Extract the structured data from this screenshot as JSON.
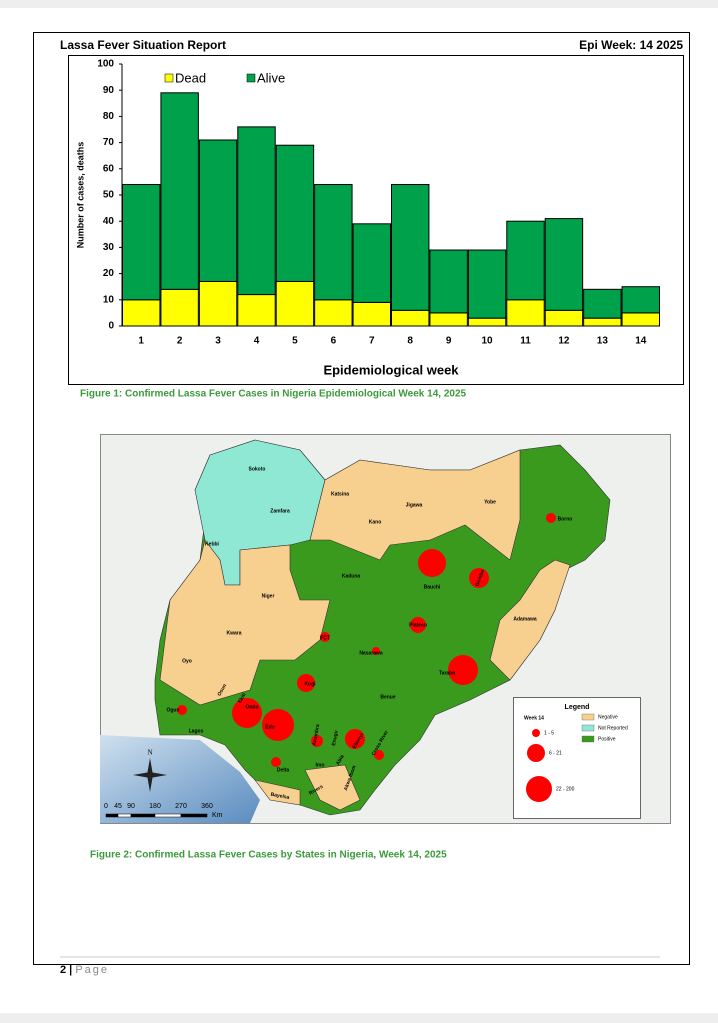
{
  "header": {
    "title": "Lassa Fever Situation Report",
    "week": "Epi Week: 14 2025"
  },
  "chart_data": {
    "type": "bar",
    "stacked": true,
    "legend": "top-left",
    "categories": [
      "1",
      "2",
      "3",
      "4",
      "5",
      "6",
      "7",
      "8",
      "9",
      "10",
      "11",
      "12",
      "13",
      "14"
    ],
    "series": [
      {
        "name": "Dead",
        "color": "#ffff00",
        "values": [
          10,
          14,
          17,
          12,
          17,
          10,
          9,
          6,
          5,
          3,
          10,
          6,
          3,
          5
        ]
      },
      {
        "name": "Alive",
        "color": "#00a14b",
        "values": [
          44,
          75,
          54,
          64,
          52,
          44,
          30,
          48,
          24,
          26,
          30,
          35,
          11,
          10
        ]
      }
    ],
    "ylim": [
      0,
      100
    ],
    "yticks": [
      0,
      10,
      20,
      30,
      40,
      50,
      60,
      70,
      80,
      90,
      100
    ],
    "ylabel": "Number of cases, deaths",
    "xlabel": "Epidemiological week"
  },
  "figure1_caption": "Figure 1: Confirmed Lassa Fever Cases in Nigeria Epidemiological Week 14, 2025",
  "map": {
    "states": [
      "Sokoto",
      "Katsina",
      "Jigawa",
      "Yobe",
      "Borno",
      "Zamfara",
      "Kano",
      "Kebbi",
      "Bauchi",
      "Gombe",
      "Kaduna",
      "Niger",
      "Adamawa",
      "FCT",
      "Plateau",
      "Kwara",
      "Nasarawa",
      "Oyo",
      "Osun",
      "Ekiti",
      "Kogi",
      "Taraba",
      "Benue",
      "Ogun",
      "Ondo",
      "Edo",
      "Lagos",
      "Anambra",
      "Enugu",
      "Ebonyi",
      "Cross River",
      "Delta",
      "Imo",
      "Abia",
      "Akwa Ibom",
      "Rivers",
      "Bayelsa"
    ],
    "legend": {
      "title": "Legend",
      "size_title": "Week 14",
      "sizes": [
        "1 - 5",
        "6 - 21",
        "22 - 200"
      ],
      "classes": [
        "Negative",
        "Not Reported",
        "Positive"
      ]
    },
    "scale_labels": [
      "0",
      "45",
      "90",
      "180",
      "270",
      "360"
    ],
    "scale_unit": "Km",
    "north": "N"
  },
  "figure2_caption": "Figure 2: Confirmed Lassa Fever Cases by States in Nigeria, Week 14, 2025",
  "footer": {
    "page": "2",
    "sep": " | ",
    "label": "Page"
  }
}
